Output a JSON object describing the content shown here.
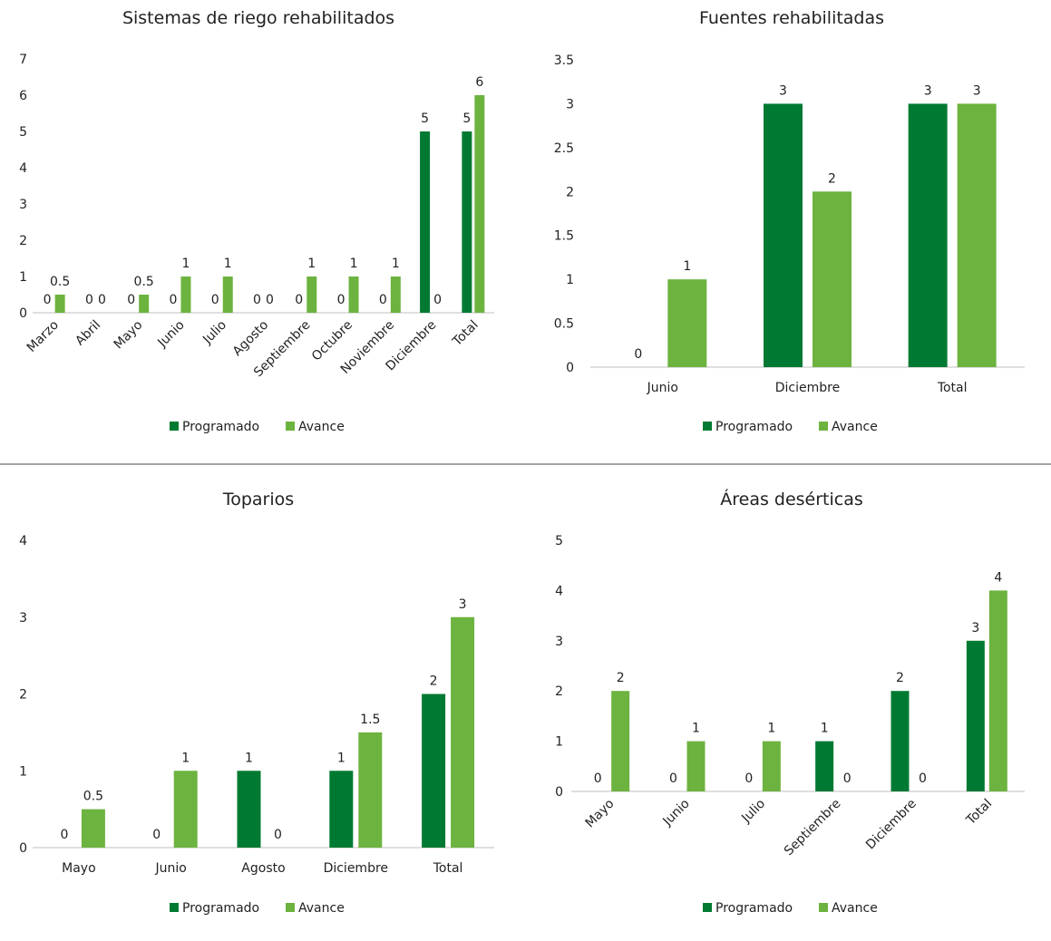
{
  "colors": {
    "programado": "#007A33",
    "avance": "#6DB33F",
    "axis": "#BFBFBF"
  },
  "legend": {
    "programado": "Programado",
    "avance": "Avance"
  },
  "chart_data": [
    {
      "type": "bar",
      "title": "Sistemas de riego rehabilitados",
      "categories": [
        "Marzo",
        "Abril",
        "Mayo",
        "Junio",
        "Julio",
        "Agosto",
        "Septiembre",
        "Octubre",
        "Noviembre",
        "Diciembre",
        "Total"
      ],
      "series": [
        {
          "name": "Programado",
          "values": [
            0,
            0,
            0,
            0,
            0,
            0,
            0,
            0,
            0,
            5,
            5
          ]
        },
        {
          "name": "Avance",
          "values": [
            0.5,
            0,
            0.5,
            1,
            1,
            0,
            1,
            1,
            1,
            0,
            6
          ]
        }
      ],
      "ylim": [
        0,
        7
      ],
      "yticks": [
        "0",
        "1",
        "2",
        "3",
        "4",
        "5",
        "6",
        "7"
      ],
      "rotated_labels": true,
      "legend_position": "bottom"
    },
    {
      "type": "bar",
      "title": "Fuentes rehabilitadas",
      "categories": [
        "Junio",
        "Diciembre",
        "Total"
      ],
      "series": [
        {
          "name": "Programado",
          "values": [
            0,
            3,
            3
          ]
        },
        {
          "name": "Avance",
          "values": [
            1,
            2,
            3
          ]
        }
      ],
      "ylim": [
        0,
        3.5
      ],
      "yticks": [
        "0",
        "0.5",
        "1",
        "1.5",
        "2",
        "2.5",
        "3",
        "3.5"
      ],
      "rotated_labels": false,
      "legend_position": "bottom"
    },
    {
      "type": "bar",
      "title": "Toparios",
      "categories": [
        "Mayo",
        "Junio",
        "Agosto",
        "Diciembre",
        "Total"
      ],
      "series": [
        {
          "name": "Programado",
          "values": [
            0,
            0,
            1,
            1,
            2
          ]
        },
        {
          "name": "Avance",
          "values": [
            0.5,
            1,
            0,
            1.5,
            3
          ]
        }
      ],
      "ylim": [
        0,
        4
      ],
      "yticks": [
        "0",
        "1",
        "2",
        "3",
        "4"
      ],
      "rotated_labels": false,
      "legend_position": "bottom"
    },
    {
      "type": "bar",
      "title": "Áreas desérticas",
      "categories": [
        "Mayo",
        "Junio",
        "Julio",
        "Septiembre",
        "Diciembre",
        "Total"
      ],
      "series": [
        {
          "name": "Programado",
          "values": [
            0,
            0,
            0,
            1,
            2,
            3
          ]
        },
        {
          "name": "Avance",
          "values": [
            2,
            1,
            1,
            0,
            0,
            4
          ]
        }
      ],
      "ylim": [
        0,
        5
      ],
      "yticks": [
        "0",
        "1",
        "2",
        "3",
        "4",
        "5"
      ],
      "rotated_labels": true,
      "legend_position": "bottom"
    }
  ]
}
